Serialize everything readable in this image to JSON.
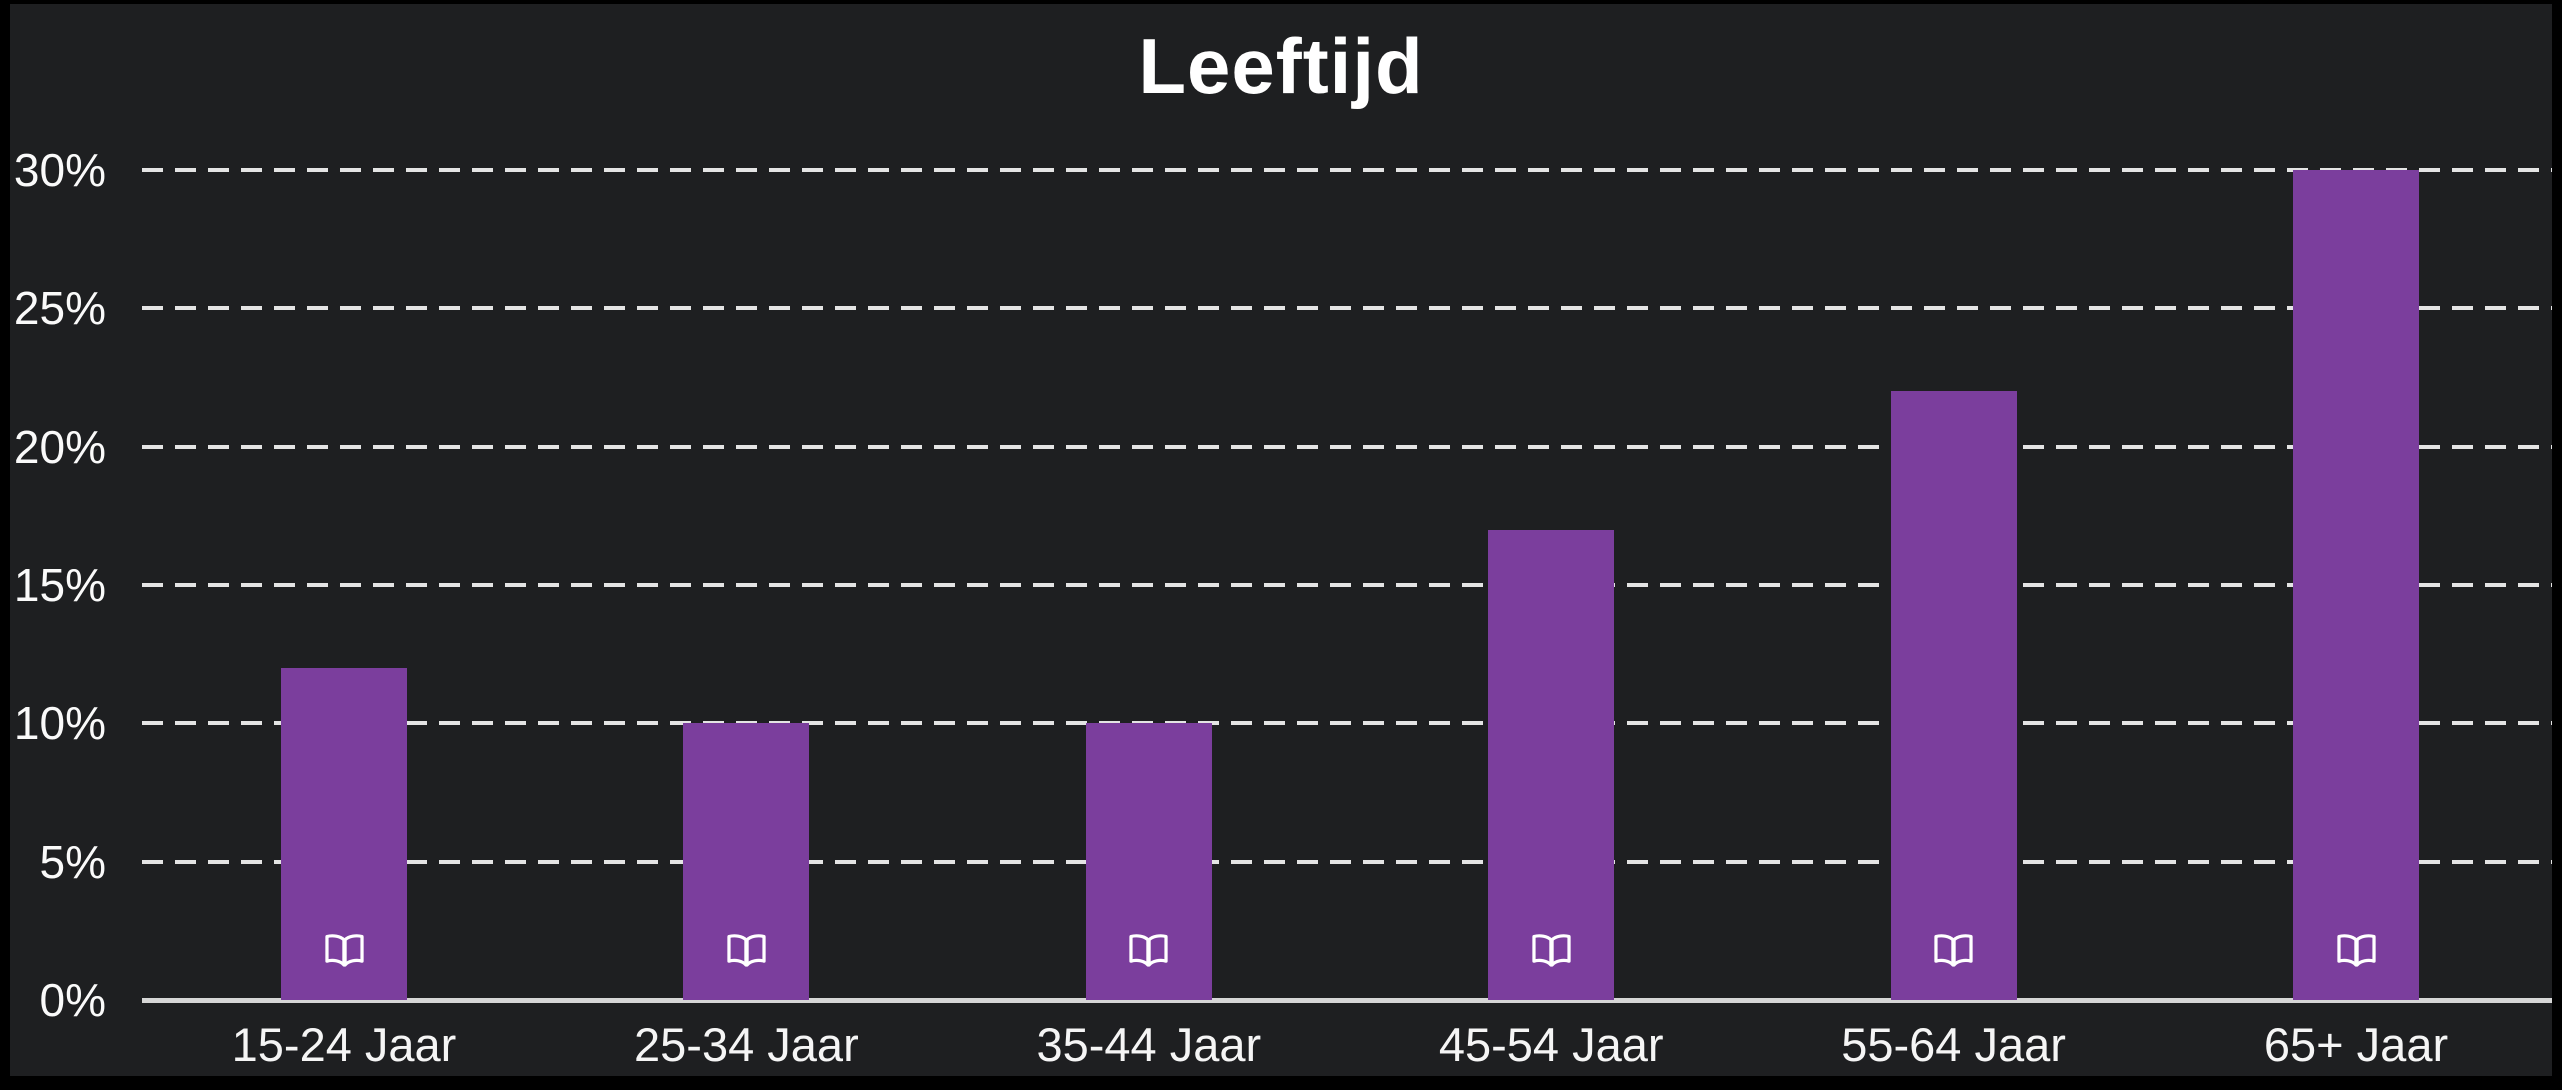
{
  "chart_data": {
    "type": "bar",
    "title": "Leeftijd",
    "categories": [
      "15-24 Jaar",
      "25-34 Jaar",
      "35-44 Jaar",
      "45-54 Jaar",
      "55-64 Jaar",
      "65+ Jaar"
    ],
    "values": [
      12,
      10,
      10,
      17,
      22,
      30
    ],
    "value_unit": "%",
    "xlabel": "",
    "ylabel": "",
    "ylim": [
      0,
      30
    ],
    "y_ticks": [
      0,
      5,
      10,
      15,
      20,
      25,
      30
    ],
    "y_tick_labels": [
      "0%",
      "5%",
      "10%",
      "15%",
      "20%",
      "25%",
      "30%"
    ],
    "grid": "horizontal-dashed",
    "legend_position": "none",
    "bar_icon": "open-book-icon",
    "colors": {
      "background": "#1e1f21",
      "outer_border": "#000000",
      "bar_fill": "#7b3e9d",
      "title_text": "#ffffff",
      "tick_text": "#fafafa",
      "gridline": "#e4e4e4",
      "axis_line": "#d6d6d6",
      "icon_stroke": "#ffffff"
    }
  }
}
